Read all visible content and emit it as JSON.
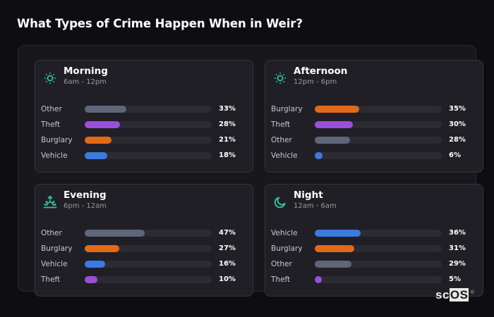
{
  "header": {
    "title": "What Types of Crime Happen When in Weir?"
  },
  "colors": {
    "Other": "#5e6679",
    "Theft": "#9a4fd9",
    "Burglary": "#e06a1a",
    "Vehicle": "#3b7ae0",
    "accent": "#2bc49a"
  },
  "cards": [
    {
      "title": "Morning",
      "subtitle": "6am - 12pm",
      "icon": "sun-icon",
      "rows": [
        {
          "label": "Other",
          "value": 33,
          "pct": "33%"
        },
        {
          "label": "Theft",
          "value": 28,
          "pct": "28%"
        },
        {
          "label": "Burglary",
          "value": 21,
          "pct": "21%"
        },
        {
          "label": "Vehicle",
          "value": 18,
          "pct": "18%"
        }
      ]
    },
    {
      "title": "Afternoon",
      "subtitle": "12pm - 6pm",
      "icon": "sun-icon",
      "rows": [
        {
          "label": "Burglary",
          "value": 35,
          "pct": "35%"
        },
        {
          "label": "Theft",
          "value": 30,
          "pct": "30%"
        },
        {
          "label": "Other",
          "value": 28,
          "pct": "28%"
        },
        {
          "label": "Vehicle",
          "value": 6,
          "pct": "6%"
        }
      ]
    },
    {
      "title": "Evening",
      "subtitle": "6pm - 12am",
      "icon": "sunset-icon",
      "rows": [
        {
          "label": "Other",
          "value": 47,
          "pct": "47%"
        },
        {
          "label": "Burglary",
          "value": 27,
          "pct": "27%"
        },
        {
          "label": "Vehicle",
          "value": 16,
          "pct": "16%"
        },
        {
          "label": "Theft",
          "value": 10,
          "pct": "10%"
        }
      ]
    },
    {
      "title": "Night",
      "subtitle": "12am - 6am",
      "icon": "moon-icon",
      "rows": [
        {
          "label": "Vehicle",
          "value": 36,
          "pct": "36%"
        },
        {
          "label": "Burglary",
          "value": 31,
          "pct": "31%"
        },
        {
          "label": "Other",
          "value": 29,
          "pct": "29%"
        },
        {
          "label": "Theft",
          "value": 5,
          "pct": "5%"
        }
      ]
    }
  ],
  "logo": {
    "prefix": "sc",
    "highlight": "OS",
    "mark": "®"
  },
  "chart_data": [
    {
      "type": "bar",
      "title": "Morning",
      "subtitle": "6am - 12pm",
      "orientation": "horizontal",
      "categories": [
        "Other",
        "Theft",
        "Burglary",
        "Vehicle"
      ],
      "values": [
        33,
        28,
        21,
        18
      ],
      "unit": "%",
      "xlim": [
        0,
        100
      ]
    },
    {
      "type": "bar",
      "title": "Afternoon",
      "subtitle": "12pm - 6pm",
      "orientation": "horizontal",
      "categories": [
        "Burglary",
        "Theft",
        "Other",
        "Vehicle"
      ],
      "values": [
        35,
        30,
        28,
        6
      ],
      "unit": "%",
      "xlim": [
        0,
        100
      ]
    },
    {
      "type": "bar",
      "title": "Evening",
      "subtitle": "6pm - 12am",
      "orientation": "horizontal",
      "categories": [
        "Other",
        "Burglary",
        "Vehicle",
        "Theft"
      ],
      "values": [
        47,
        27,
        16,
        10
      ],
      "unit": "%",
      "xlim": [
        0,
        100
      ]
    },
    {
      "type": "bar",
      "title": "Night",
      "subtitle": "12am - 6am",
      "orientation": "horizontal",
      "categories": [
        "Vehicle",
        "Burglary",
        "Other",
        "Theft"
      ],
      "values": [
        36,
        31,
        29,
        5
      ],
      "unit": "%",
      "xlim": [
        0,
        100
      ]
    }
  ]
}
